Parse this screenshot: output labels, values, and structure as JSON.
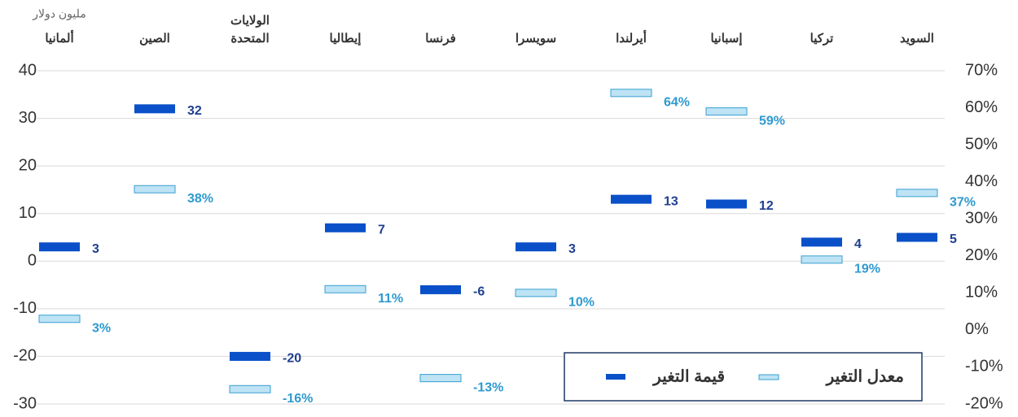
{
  "chart_data": {
    "type": "floating-markers",
    "y_axis_label": "مليون دولار",
    "categories": [
      "ألمانيا",
      "الصين",
      "الولايات المتحدة",
      "إيطاليا",
      "فرنسا",
      "سويسرا",
      "أيرلندا",
      "إسبانيا",
      "تركيا",
      "السويد"
    ],
    "series": [
      {
        "name": "قيمة التغير",
        "color": "#0a50c8",
        "values": [
          3,
          32,
          -20,
          7,
          -6,
          3,
          13,
          12,
          4,
          5
        ]
      },
      {
        "name": "معدل التغير",
        "color": "#bde3f5",
        "axis": "y2",
        "values": [
          3,
          38,
          -16,
          11,
          -13,
          10,
          64,
          59,
          19,
          37
        ],
        "value_labels": [
          "3%",
          "38%",
          "-16%",
          "11%",
          "-13%",
          "10%",
          "64%",
          "59%",
          "19%",
          "37%"
        ]
      }
    ],
    "ylim": [
      -30,
      40
    ],
    "yticks": [
      -30,
      -20,
      -10,
      0,
      10,
      20,
      30,
      40
    ],
    "y2lim": [
      -20,
      70
    ],
    "y2ticks": [
      {
        "value": -20,
        "label": "-20%"
      },
      {
        "value": -10,
        "label": "-10%"
      },
      {
        "value": 0,
        "label": "0%"
      },
      {
        "value": 10,
        "label": "10%"
      },
      {
        "value": 20,
        "label": "20%"
      },
      {
        "value": 30,
        "label": "30%"
      },
      {
        "value": 40,
        "label": "40%"
      },
      {
        "value": 50,
        "label": "50%"
      },
      {
        "value": 60,
        "label": "60%"
      },
      {
        "value": 70,
        "label": "70%"
      }
    ],
    "grid": true
  }
}
